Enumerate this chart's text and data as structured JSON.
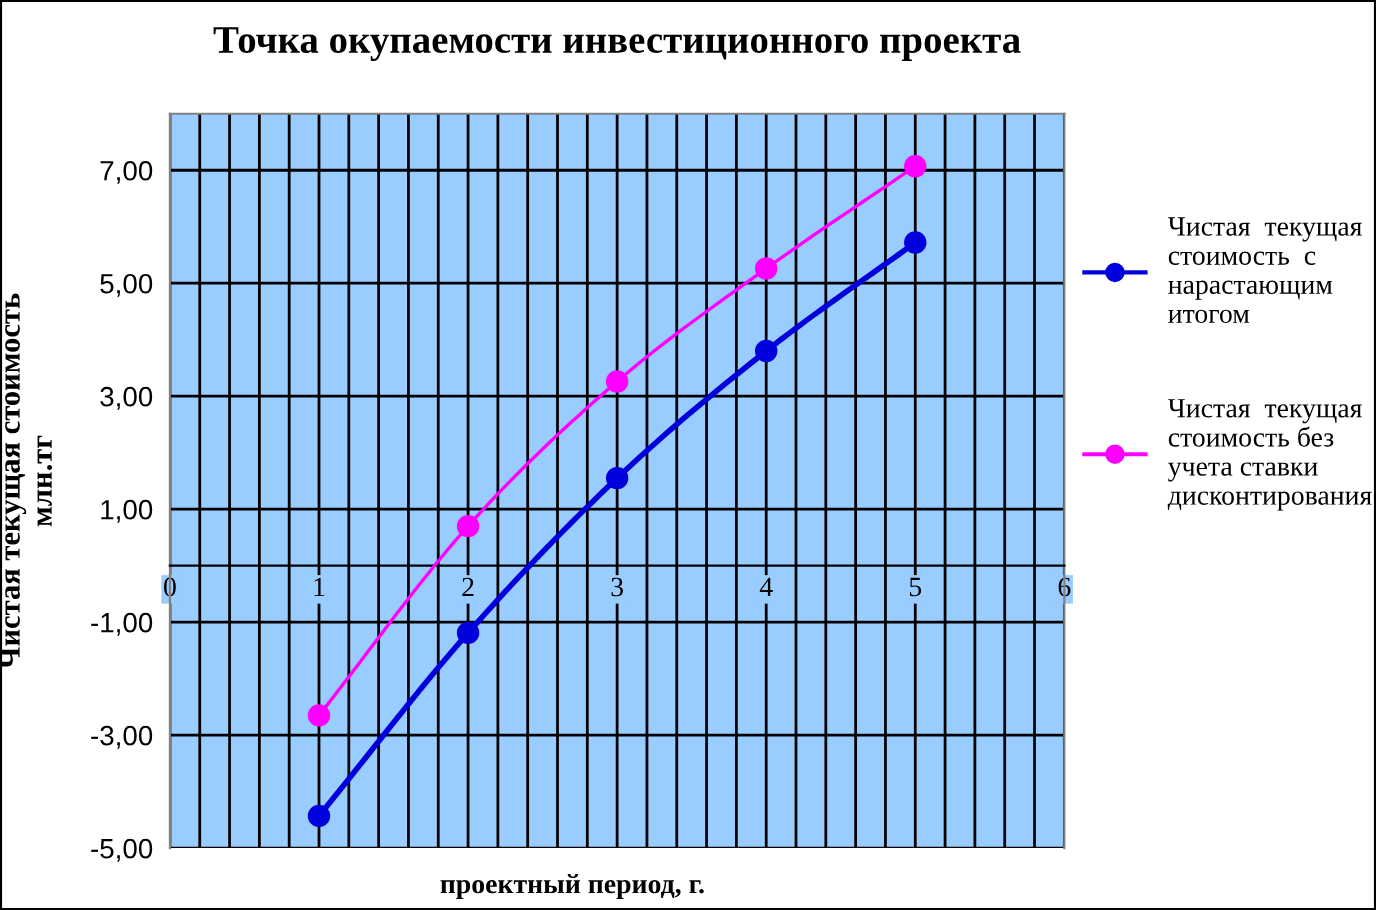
{
  "chart_data": {
    "type": "line",
    "title": "Точка окупаемости инвестиционного проекта",
    "xlabel": "проектный период, г.",
    "ylabel": "Чистая текущая стоимость\nмлн.тг",
    "x": [
      1,
      2,
      3,
      4,
      5
    ],
    "series": [
      {
        "name": "Чистая  текущая\nстоимость  с\nнарастающим\nитогом",
        "color": "#0000dd",
        "values": [
          -4.43,
          -1.19,
          1.55,
          3.8,
          5.72
        ]
      },
      {
        "name": "Чистая  текущая\nстоимость без\nучета ставки\nдисконтирования",
        "color": "#ff00ff",
        "values": [
          -2.65,
          0.7,
          3.26,
          5.26,
          7.07
        ]
      }
    ],
    "xlim": [
      0,
      6
    ],
    "xticks": [
      0,
      {
        "value": 0.2,
        "label": null
      },
      {
        "value": 0.4,
        "label": null
      },
      {
        "value": 0.6,
        "label": null
      },
      {
        "value": 0.8,
        "label": null
      },
      1,
      {
        "value": 1.2,
        "label": null
      },
      {
        "value": 1.4,
        "label": null
      },
      {
        "value": 1.6,
        "label": null
      },
      {
        "value": 1.8,
        "label": null
      },
      2,
      {
        "value": 2.2,
        "label": null
      },
      {
        "value": 2.4,
        "label": null
      },
      {
        "value": 2.6,
        "label": null
      },
      {
        "value": 2.8,
        "label": null
      },
      3,
      {
        "value": 3.2,
        "label": null
      },
      {
        "value": 3.4,
        "label": null
      },
      {
        "value": 3.6,
        "label": null
      },
      {
        "value": 3.8,
        "label": null
      },
      4,
      {
        "value": 4.2,
        "label": null
      },
      {
        "value": 4.4,
        "label": null
      },
      {
        "value": 4.6,
        "label": null
      },
      {
        "value": 4.8,
        "label": null
      },
      5,
      {
        "value": 5.2,
        "label": null
      },
      {
        "value": 5.4,
        "label": null
      },
      {
        "value": 5.6,
        "label": null
      },
      {
        "value": 5.8,
        "label": null
      },
      6
    ],
    "ylim": [
      -5,
      8
    ],
    "yticks": [
      {
        "value": -5,
        "label": "-5,00"
      },
      {
        "value": -3,
        "label": "-3,00"
      },
      {
        "value": -1,
        "label": "-1,00"
      },
      {
        "value": 1,
        "label": "1,00"
      },
      {
        "value": 3,
        "label": "3,00"
      },
      {
        "value": 5,
        "label": "5,00"
      },
      {
        "value": 7,
        "label": "7,00"
      }
    ],
    "grid": true,
    "legend": "right",
    "marker": "circle",
    "line_style": "solid"
  }
}
